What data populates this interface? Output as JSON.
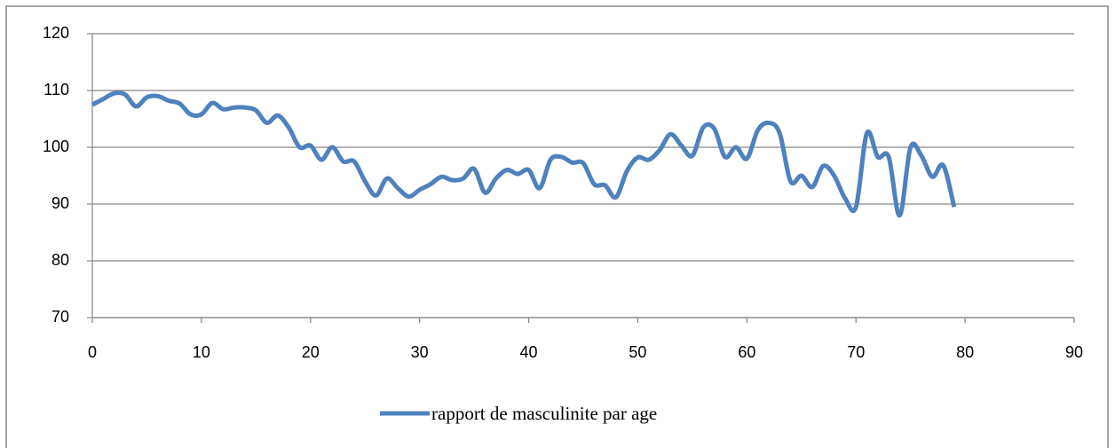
{
  "chart_data": {
    "type": "line",
    "x": [
      0,
      1,
      2,
      3,
      4,
      5,
      6,
      7,
      8,
      9,
      10,
      11,
      12,
      13,
      14,
      15,
      16,
      17,
      18,
      19,
      20,
      21,
      22,
      23,
      24,
      25,
      26,
      27,
      28,
      29,
      30,
      31,
      32,
      33,
      34,
      35,
      36,
      37,
      38,
      39,
      40,
      41,
      42,
      43,
      44,
      45,
      46,
      47,
      48,
      49,
      50,
      51,
      52,
      53,
      54,
      55,
      56,
      57,
      58,
      59,
      60,
      61,
      62,
      63,
      64,
      65,
      66,
      67,
      68,
      69,
      70,
      71,
      72,
      73,
      74,
      75,
      76,
      77,
      78,
      79
    ],
    "series": [
      {
        "name": "rapport de masculinite par age",
        "color": "#4f81bd",
        "values": [
          107.5,
          108.5,
          109.5,
          109.3,
          107.2,
          108.8,
          109,
          108.2,
          107.7,
          105.8,
          105.8,
          107.8,
          106.7,
          107,
          107,
          106.5,
          104.3,
          105.6,
          103.5,
          100,
          100.3,
          97.8,
          100,
          97.5,
          97.5,
          94,
          91.5,
          94.5,
          92.8,
          91.3,
          92.5,
          93.5,
          94.8,
          94.2,
          94.5,
          96.2,
          92,
          94.5,
          96,
          95.3,
          96,
          92.8,
          97.8,
          98.3,
          97.3,
          97.2,
          93.5,
          93.3,
          91.2,
          95.8,
          98.2,
          97.8,
          99.5,
          102.3,
          100.3,
          98.5,
          103.5,
          103.3,
          98.3,
          100,
          98,
          103,
          104.3,
          102.5,
          94,
          95,
          93,
          96.7,
          95,
          91,
          89.5,
          102.5,
          98.3,
          98.3,
          88,
          100,
          98.5,
          94.8,
          96.8,
          89.5
        ]
      }
    ],
    "xlim": [
      0,
      90
    ],
    "xticks": [
      0,
      10,
      20,
      30,
      40,
      50,
      60,
      70,
      80,
      90
    ],
    "ylim": [
      70,
      120
    ],
    "yticks": [
      70,
      80,
      90,
      100,
      110,
      120
    ],
    "grid": true,
    "smooth": true,
    "legend": "bottom"
  }
}
